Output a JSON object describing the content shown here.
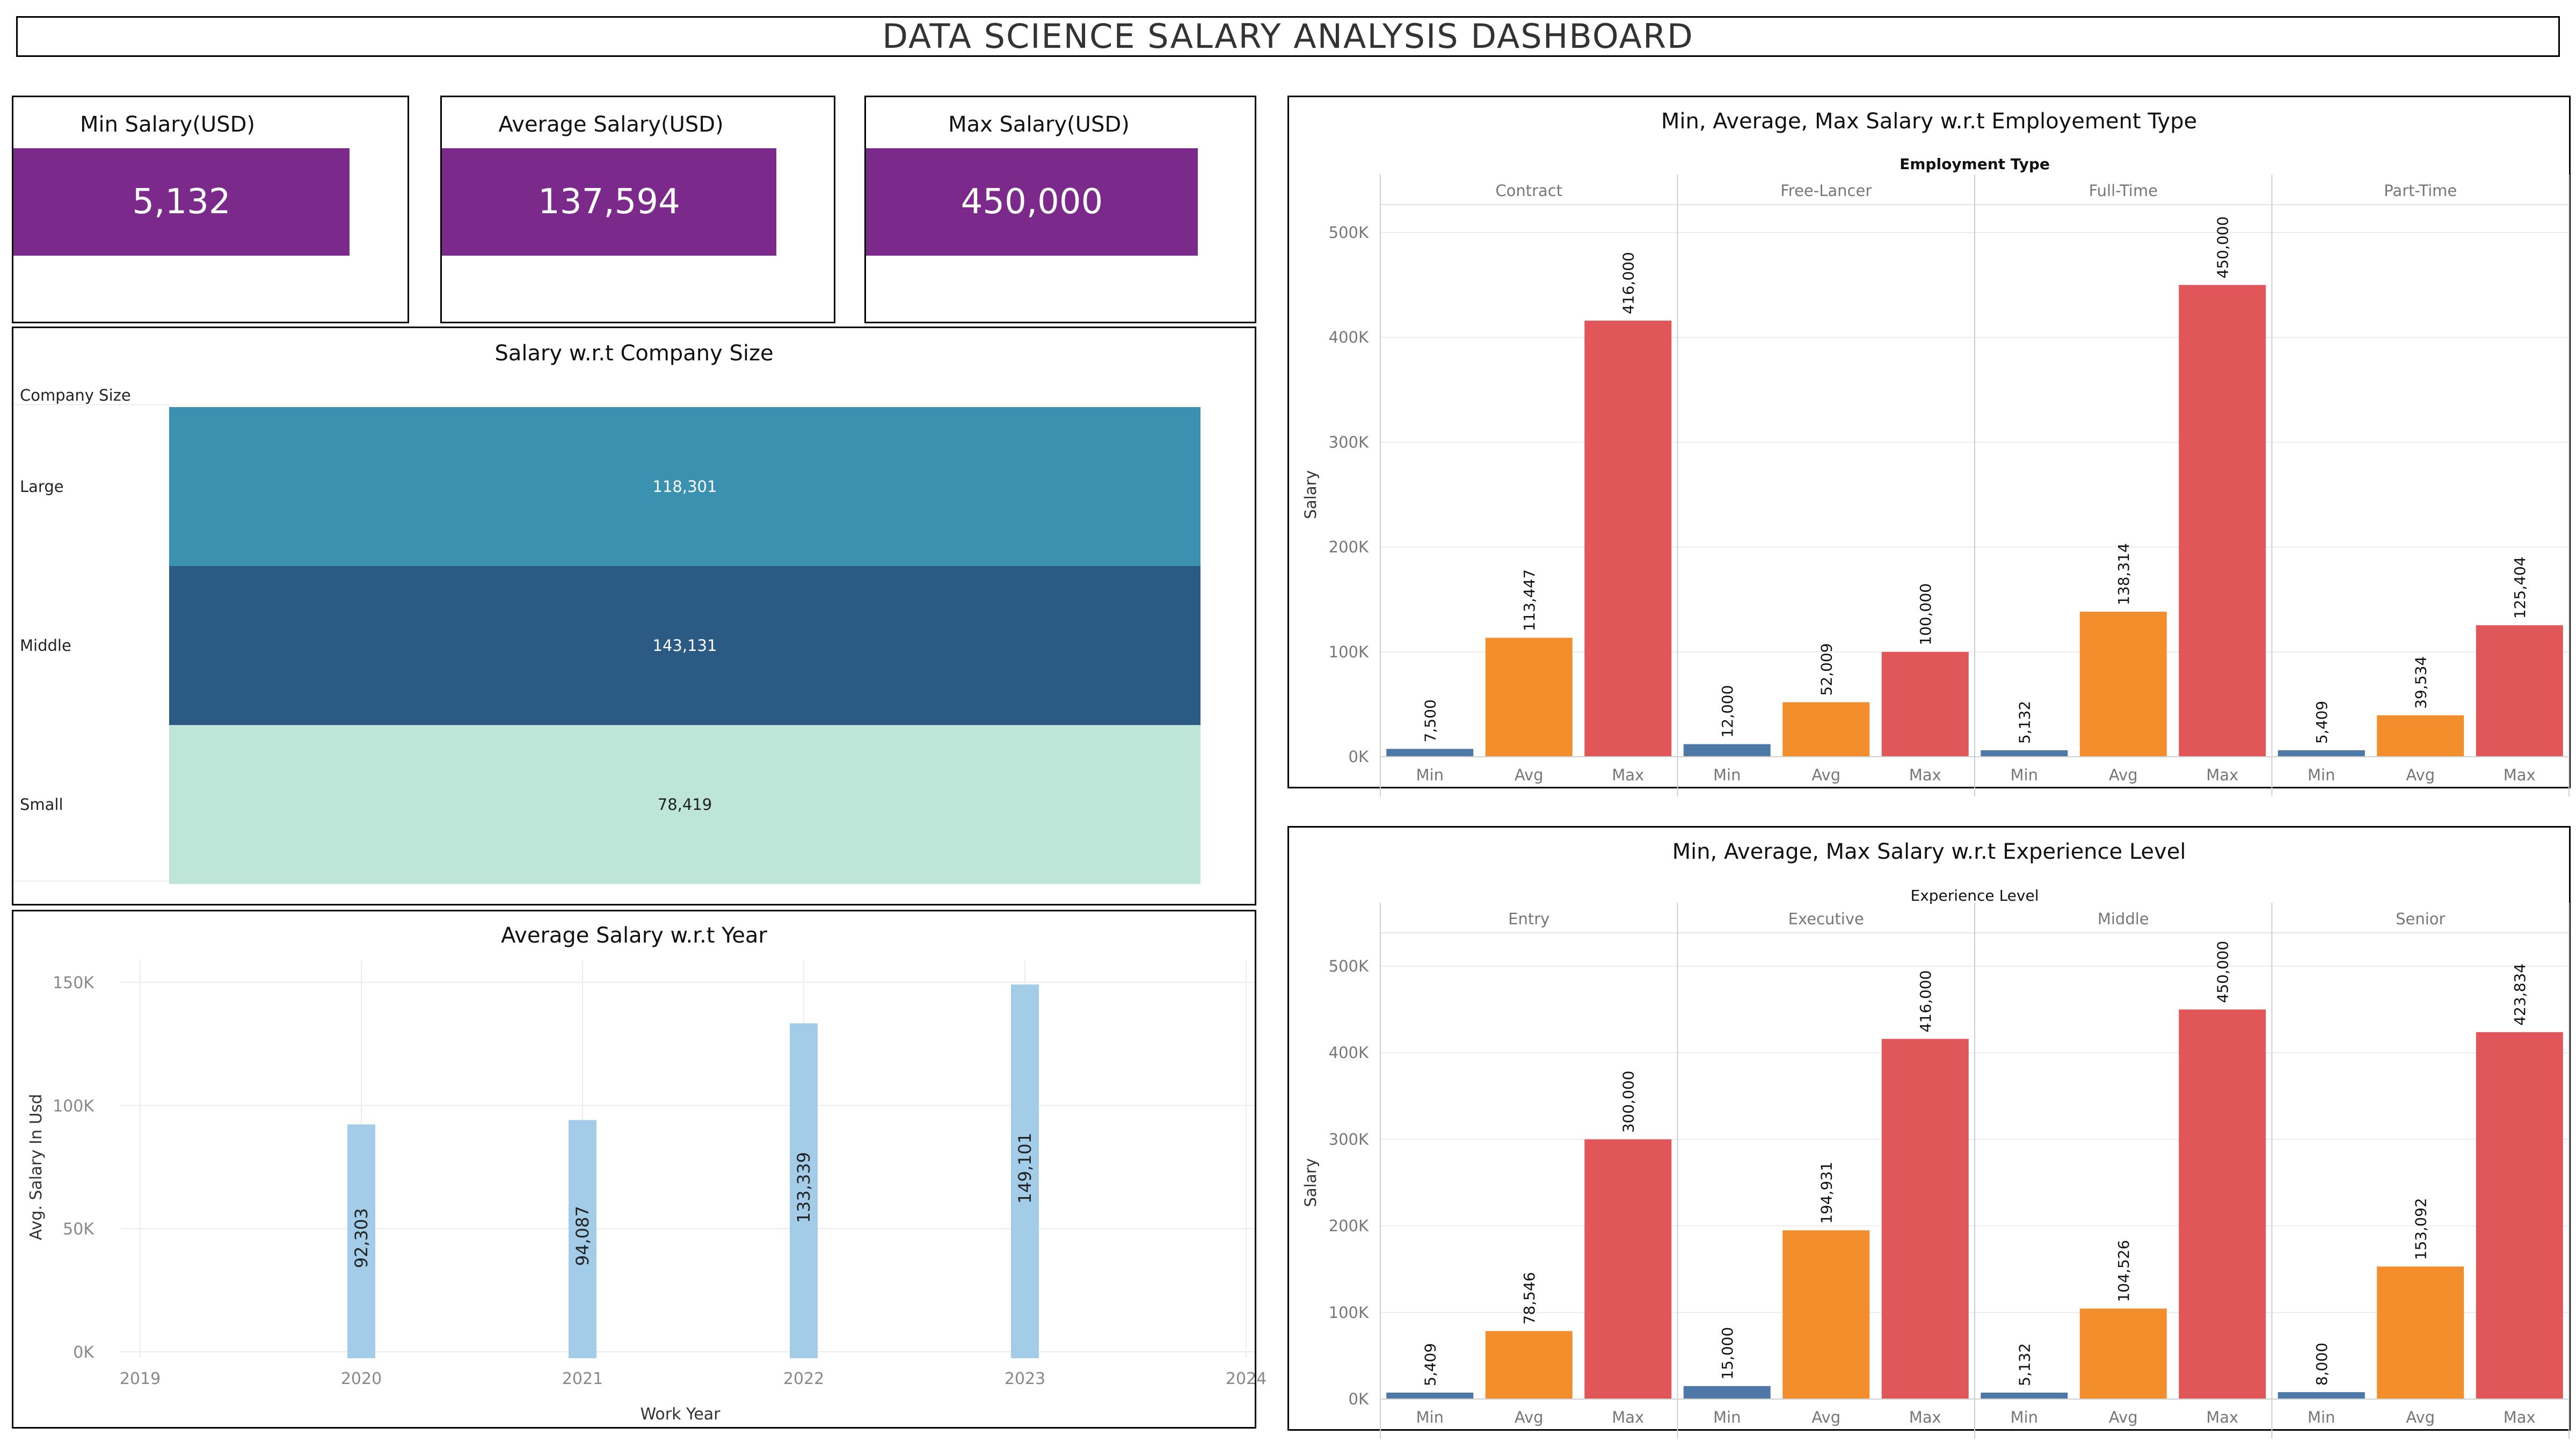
{
  "dashboard": {
    "title": "DATA SCIENCE SALARY ANALYSIS DASHBOARD"
  },
  "kpis": {
    "min": {
      "label": "Min Salary(USD)",
      "value": "5,132"
    },
    "avg": {
      "label": "Average Salary(USD)",
      "value": "137,594"
    },
    "max": {
      "label": "Max Salary(USD)",
      "value": "450,000"
    },
    "bar_color": "#7b2a8c"
  },
  "company_size": {
    "title": "Salary w.r.t Company Size",
    "header": "Company Size",
    "rows": [
      {
        "label": "Large",
        "value": "118,301",
        "color": "#3a91b0",
        "text_color": "#ffffff"
      },
      {
        "label": "Middle",
        "value": "143,131",
        "color": "#2b5a85",
        "text_color": "#ffffff"
      },
      {
        "label": "Small",
        "value": "78,419",
        "color": "#bde5d8",
        "text_color": "#222222"
      }
    ]
  },
  "year_chart": {
    "title": "Average Salary w.r.t Year",
    "chart_data": {
      "type": "bar",
      "x": [
        2020,
        2021,
        2022,
        2023
      ],
      "values": [
        92303,
        94087,
        133339,
        149101
      ],
      "data_labels": [
        "92,303",
        "94,087",
        "133,339",
        "149,101"
      ],
      "xlabel": "Work Year",
      "ylabel": "Avg. Salary In Usd",
      "xticks": [
        "2019",
        "2020",
        "2021",
        "2022",
        "2023",
        "2024"
      ],
      "xlim": [
        2019,
        2024
      ],
      "yticks": [
        "0K",
        "50K",
        "100K",
        "150K"
      ],
      "ylim": [
        0,
        150000
      ],
      "color": "#a3cce9",
      "grid": true
    }
  },
  "employment_chart": {
    "title": "Min, Average, Max Salary w.r.t Employement Type",
    "chart_data": {
      "type": "bar",
      "facet_title": "Employment Type",
      "facets": [
        "Contract",
        "Free-Lancer",
        "Full-Time",
        "Part-Time"
      ],
      "categories": [
        "Min",
        "Avg",
        "Max"
      ],
      "values": [
        [
          7500,
          113447,
          416000
        ],
        [
          12000,
          52009,
          100000
        ],
        [
          5132,
          138314,
          450000
        ],
        [
          5409,
          39534,
          125404
        ]
      ],
      "data_labels": [
        [
          "7,500",
          "113,447",
          "416,000"
        ],
        [
          "12,000",
          "52,009",
          "100,000"
        ],
        [
          "5,132",
          "138,314",
          "450,000"
        ],
        [
          "5,409",
          "39,534",
          "125,404"
        ]
      ],
      "colors": [
        "#4e79a7",
        "#f28e2b",
        "#e15759"
      ],
      "ylabel": "Salary",
      "yticks": [
        "0K",
        "100K",
        "200K",
        "300K",
        "400K",
        "500K"
      ],
      "ylim": [
        0,
        500000
      ],
      "grid": true
    }
  },
  "experience_chart": {
    "title": "Min, Average, Max Salary w.r.t Experience Level",
    "chart_data": {
      "type": "bar",
      "facet_title": "Experience Level",
      "facets": [
        "Entry",
        "Executive",
        "Middle",
        "Senior"
      ],
      "categories": [
        "Min",
        "Avg",
        "Max"
      ],
      "values": [
        [
          5409,
          78546,
          300000
        ],
        [
          15000,
          194931,
          416000
        ],
        [
          5132,
          104526,
          450000
        ],
        [
          8000,
          153092,
          423834
        ]
      ],
      "data_labels": [
        [
          "5,409",
          "78,546",
          "300,000"
        ],
        [
          "15,000",
          "194,931",
          "416,000"
        ],
        [
          "5,132",
          "104,526",
          "450,000"
        ],
        [
          "8,000",
          "153,092",
          "423,834"
        ]
      ],
      "colors": [
        "#4e79a7",
        "#f28e2b",
        "#e15759"
      ],
      "ylabel": "Salary",
      "yticks": [
        "0K",
        "100K",
        "200K",
        "300K",
        "400K",
        "500K"
      ],
      "ylim": [
        0,
        500000
      ],
      "grid": true
    }
  }
}
